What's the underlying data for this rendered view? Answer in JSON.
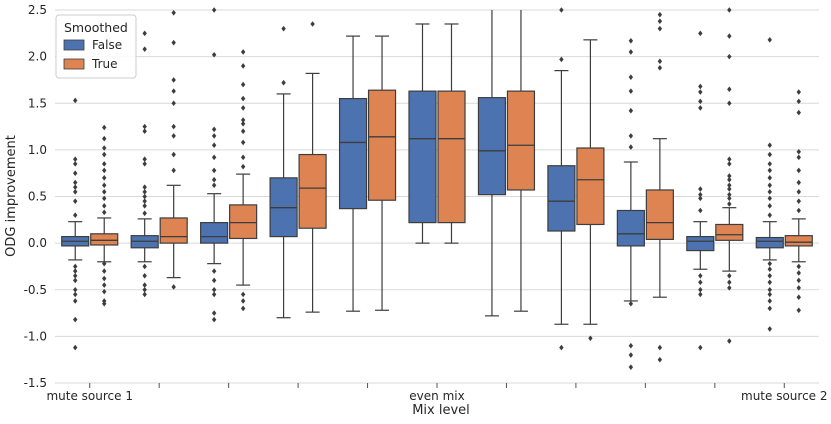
{
  "chart_data": {
    "type": "boxplot",
    "title": "",
    "xlabel": "Mix level",
    "ylabel": "ODG improvement",
    "ylim": [
      -1.5,
      2.5
    ],
    "yticks": [
      "-1.5",
      "-1.0",
      "-0.5",
      "0.0",
      "0.5",
      "1.0",
      "1.5",
      "2.0",
      "2.5"
    ],
    "ytick_values": [
      -1.5,
      -1.0,
      -0.5,
      0.0,
      0.5,
      1.0,
      1.5,
      2.0,
      2.5
    ],
    "x_tick_labels": [
      "mute source 1",
      "",
      "",
      "",
      "",
      "even mix",
      "",
      "",
      "",
      "",
      "mute source 2"
    ],
    "grid": true,
    "legend": {
      "title": "Smoothed",
      "position": "top-left",
      "entries": [
        {
          "label": "False",
          "color": "#4c72b0"
        },
        {
          "label": "True",
          "color": "#dd8452"
        }
      ]
    },
    "series": [
      {
        "name": "False",
        "color": "#4c72b0",
        "boxes": [
          {
            "q1": -0.03,
            "median": 0.02,
            "q3": 0.07,
            "whislo": -0.18,
            "whishi": 0.23,
            "fliers": [
              0.3,
              0.45,
              0.55,
              0.6,
              0.65,
              0.75,
              0.85,
              0.9,
              1.53,
              -0.25,
              -0.3,
              -0.35,
              -0.4,
              -0.5,
              -0.55,
              -0.62,
              -0.82,
              -1.12
            ]
          },
          {
            "q1": -0.05,
            "median": 0.02,
            "q3": 0.08,
            "whislo": -0.2,
            "whishi": 0.26,
            "fliers": [
              0.32,
              0.4,
              0.45,
              0.5,
              0.55,
              0.6,
              0.85,
              0.9,
              1.2,
              1.25,
              2.08,
              2.25,
              -0.25,
              -0.35,
              -0.45,
              -0.5,
              -0.55
            ]
          },
          {
            "q1": 0.0,
            "median": 0.07,
            "q3": 0.22,
            "whislo": -0.22,
            "whishi": 0.53,
            "fliers": [
              0.62,
              0.68,
              0.78,
              0.92,
              1.05,
              1.15,
              1.22,
              2.02,
              2.5,
              -0.3,
              -0.4,
              -0.5,
              -0.55,
              -0.75,
              -0.82
            ]
          },
          {
            "q1": 0.07,
            "median": 0.38,
            "q3": 0.7,
            "whislo": -0.8,
            "whishi": 1.6,
            "fliers": [
              1.72,
              2.3
            ]
          },
          {
            "q1": 0.37,
            "median": 1.08,
            "q3": 1.55,
            "whislo": -0.73,
            "whishi": 2.22,
            "fliers": []
          },
          {
            "q1": 0.22,
            "median": 1.12,
            "q3": 1.63,
            "whislo": 0.0,
            "whishi": 2.35,
            "fliers": []
          },
          {
            "q1": 0.52,
            "median": 0.99,
            "q3": 1.56,
            "whislo": -0.78,
            "whishi": 2.5,
            "fliers": []
          },
          {
            "q1": 0.13,
            "median": 0.45,
            "q3": 0.83,
            "whislo": -0.87,
            "whishi": 1.85,
            "fliers": [
              1.97,
              2.5,
              -1.12
            ]
          },
          {
            "q1": -0.03,
            "median": 0.1,
            "q3": 0.35,
            "whislo": -0.62,
            "whishi": 0.87,
            "fliers": [
              1.03,
              1.15,
              1.42,
              1.63,
              1.78,
              2.05,
              2.17,
              -0.65,
              -1.1,
              -1.2,
              -1.33
            ]
          },
          {
            "q1": -0.08,
            "median": 0.02,
            "q3": 0.07,
            "whislo": -0.28,
            "whishi": 0.23,
            "fliers": [
              0.35,
              0.48,
              0.52,
              0.58,
              1.45,
              1.52,
              1.62,
              1.68,
              2.25,
              -0.35,
              -0.42,
              -0.5,
              -0.55,
              -1.12
            ]
          },
          {
            "q1": -0.05,
            "median": 0.02,
            "q3": 0.06,
            "whislo": -0.18,
            "whishi": 0.23,
            "fliers": [
              0.3,
              0.4,
              0.48,
              0.55,
              0.62,
              0.7,
              0.78,
              0.85,
              0.95,
              1.05,
              2.18,
              -0.22,
              -0.28,
              -0.35,
              -0.42,
              -0.5,
              -0.55,
              -0.62,
              -0.7,
              -0.92
            ]
          }
        ]
      },
      {
        "name": "True",
        "color": "#dd8452",
        "boxes": [
          {
            "q1": -0.02,
            "median": 0.03,
            "q3": 0.1,
            "whislo": -0.2,
            "whishi": 0.27,
            "fliers": [
              0.33,
              0.4,
              0.48,
              0.55,
              0.62,
              0.7,
              0.78,
              0.85,
              0.95,
              1.02,
              1.12,
              1.24,
              -0.22,
              -0.3,
              -0.38,
              -0.45,
              -0.52,
              -0.62,
              -0.65
            ]
          },
          {
            "q1": 0.0,
            "median": 0.07,
            "q3": 0.27,
            "whislo": -0.37,
            "whishi": 0.62,
            "fliers": [
              0.78,
              0.95,
              1.15,
              1.25,
              1.5,
              1.63,
              1.75,
              2.15,
              2.47,
              -0.47
            ]
          },
          {
            "q1": 0.05,
            "median": 0.22,
            "q3": 0.41,
            "whislo": -0.45,
            "whishi": 0.74,
            "fliers": [
              0.82,
              0.92,
              1.08,
              1.2,
              1.28,
              1.32,
              1.45,
              1.55,
              1.7,
              1.9,
              2.05,
              -0.55,
              -0.62,
              -0.7
            ]
          },
          {
            "q1": 0.16,
            "median": 0.59,
            "q3": 0.95,
            "whislo": -0.74,
            "whishi": 1.82,
            "fliers": [
              2.35
            ]
          },
          {
            "q1": 0.46,
            "median": 1.14,
            "q3": 1.64,
            "whislo": -0.72,
            "whishi": 2.22,
            "fliers": []
          },
          {
            "q1": 0.22,
            "median": 1.12,
            "q3": 1.63,
            "whislo": 0.0,
            "whishi": 2.35,
            "fliers": []
          },
          {
            "q1": 0.57,
            "median": 1.05,
            "q3": 1.63,
            "whislo": -0.73,
            "whishi": 2.5,
            "fliers": []
          },
          {
            "q1": 0.2,
            "median": 0.68,
            "q3": 1.02,
            "whislo": -0.87,
            "whishi": 2.18,
            "fliers": [
              -1.02
            ]
          },
          {
            "q1": 0.04,
            "median": 0.22,
            "q3": 0.57,
            "whislo": -0.58,
            "whishi": 1.12,
            "fliers": [
              1.88,
              1.95,
              2.3,
              2.38,
              2.45,
              -1.12,
              -1.25
            ]
          },
          {
            "q1": 0.03,
            "median": 0.09,
            "q3": 0.2,
            "whislo": -0.3,
            "whishi": 0.38,
            "fliers": [
              0.42,
              0.48,
              0.52,
              0.58,
              0.62,
              0.68,
              0.72,
              0.85,
              0.9,
              1.5,
              1.65,
              2.0,
              2.22,
              2.5,
              -0.35,
              -0.42,
              -0.48,
              -1.05
            ]
          },
          {
            "q1": -0.03,
            "median": 0.01,
            "q3": 0.08,
            "whislo": -0.2,
            "whishi": 0.26,
            "fliers": [
              0.35,
              0.45,
              0.55,
              0.65,
              0.78,
              0.92,
              0.98,
              1.4,
              1.52,
              1.62,
              -0.25,
              -0.32,
              -0.4,
              -0.48,
              -0.58,
              -0.72
            ]
          }
        ]
      }
    ]
  }
}
